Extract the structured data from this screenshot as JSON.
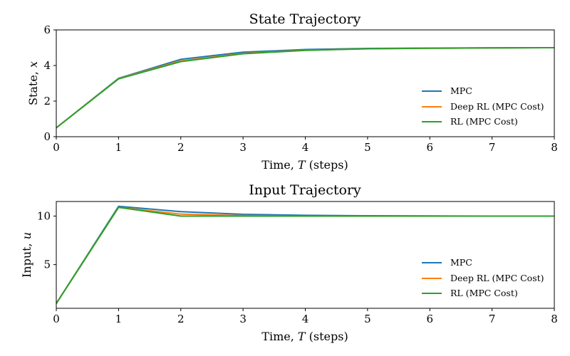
{
  "colors": {
    "mpc": "#1f77b4",
    "deep_rl": "#ff7f0e",
    "rl": "#2ca02c"
  },
  "chart_data": [
    {
      "type": "line",
      "title": "State Trajectory",
      "xlabel_prefix": "Time, ",
      "xlabel_var": "T",
      "xlabel_suffix": " (steps)",
      "ylabel_prefix": "State, ",
      "ylabel_var": "x",
      "xlim": [
        0,
        8
      ],
      "ylim": [
        0,
        6
      ],
      "xticks": [
        0,
        1,
        2,
        3,
        4,
        5,
        6,
        7,
        8
      ],
      "yticks": [
        0,
        2,
        4,
        6
      ],
      "grid": false,
      "legend_position": "center-right",
      "x": [
        0,
        1,
        2,
        3,
        4,
        5,
        6,
        7,
        8
      ],
      "series": [
        {
          "name": "MPC",
          "color": "#1f77b4",
          "values": [
            0.5,
            3.28,
            4.35,
            4.75,
            4.9,
            4.96,
            4.98,
            4.99,
            5.0
          ]
        },
        {
          "name": "Deep RL (MPC Cost)",
          "color": "#ff7f0e",
          "values": [
            0.5,
            3.26,
            4.26,
            4.68,
            4.86,
            4.94,
            4.97,
            4.99,
            5.0
          ]
        },
        {
          "name": "RL (MPC Cost)",
          "color": "#2ca02c",
          "values": [
            0.5,
            3.25,
            4.22,
            4.66,
            4.85,
            4.94,
            4.97,
            4.99,
            5.0
          ]
        }
      ]
    },
    {
      "type": "line",
      "title": "Input Trajectory",
      "xlabel_prefix": "Time, ",
      "xlabel_var": "T",
      "xlabel_suffix": " (steps)",
      "ylabel_prefix": "Input, ",
      "ylabel_var": "u",
      "xlim": [
        0,
        8
      ],
      "ylim": [
        0.5,
        11.5
      ],
      "xticks": [
        0,
        1,
        2,
        3,
        4,
        5,
        6,
        7,
        8
      ],
      "yticks": [
        5,
        10
      ],
      "grid": false,
      "legend_position": "center-right",
      "x": [
        0,
        1,
        2,
        3,
        4,
        5,
        6,
        7,
        8
      ],
      "series": [
        {
          "name": "MPC",
          "color": "#1f77b4",
          "values": [
            1.0,
            11.0,
            10.45,
            10.18,
            10.08,
            10.03,
            10.01,
            10.0,
            10.0
          ]
        },
        {
          "name": "Deep RL (MPC Cost)",
          "color": "#ff7f0e",
          "values": [
            1.0,
            10.9,
            10.2,
            10.05,
            10.0,
            10.0,
            10.0,
            10.0,
            10.0
          ]
        },
        {
          "name": "RL (MPC Cost)",
          "color": "#2ca02c",
          "values": [
            1.0,
            10.9,
            10.0,
            10.0,
            10.0,
            10.0,
            10.0,
            10.0,
            10.0
          ]
        }
      ]
    }
  ]
}
